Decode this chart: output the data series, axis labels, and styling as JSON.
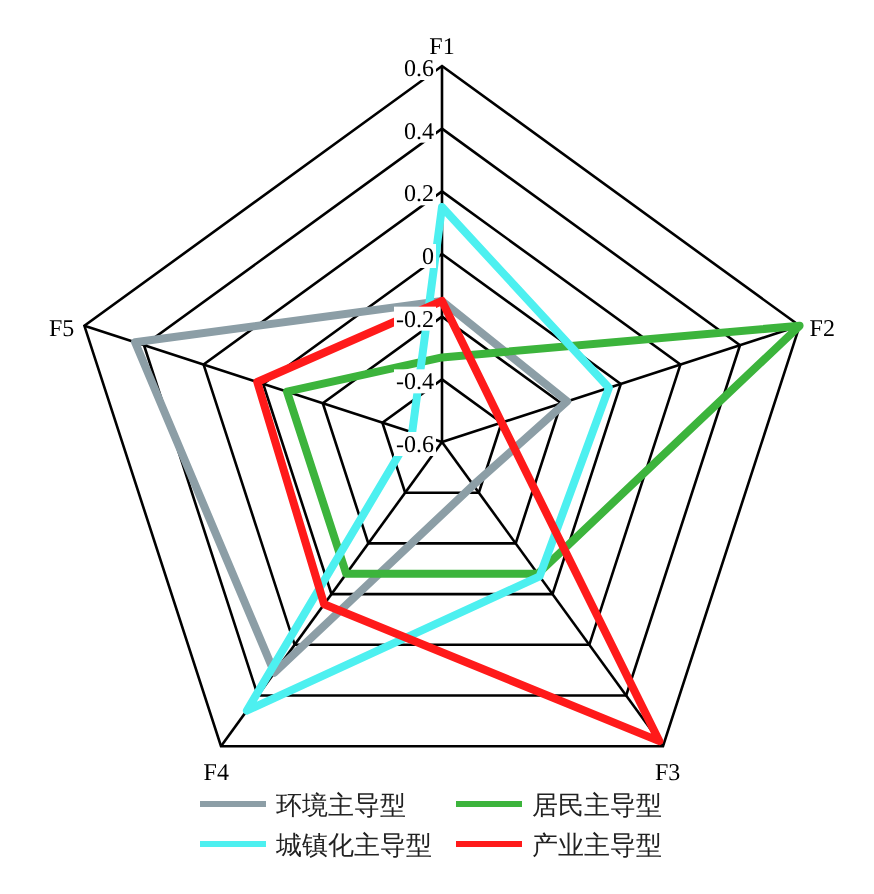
{
  "chart_data": {
    "type": "radar",
    "categories": [
      "F1",
      "F2",
      "F3",
      "F4",
      "F5"
    ],
    "series": [
      {
        "name": "环境主导型",
        "color": "#8c9ea6",
        "values": [
          -0.15,
          -0.18,
          -0.43,
          0.31,
          0.43
        ]
      },
      {
        "name": "居民主导型",
        "color": "#3cb43c",
        "values": [
          -0.33,
          0.6,
          -0.08,
          -0.08,
          -0.08
        ]
      },
      {
        "name": "城镇化主导型",
        "color": "#4df0f0",
        "values": [
          0.15,
          -0.04,
          -0.07,
          0.46,
          -0.5
        ]
      },
      {
        "name": "产业主导型",
        "color": "#ff1a1a",
        "values": [
          -0.15,
          -0.4,
          0.58,
          0.04,
          0.02
        ]
      }
    ],
    "ylim": [
      -0.6,
      0.6
    ],
    "yticks": [
      -0.6,
      -0.4,
      -0.2,
      0,
      0.2,
      0.4,
      0.6
    ],
    "grid": true,
    "legend": "bottom"
  }
}
